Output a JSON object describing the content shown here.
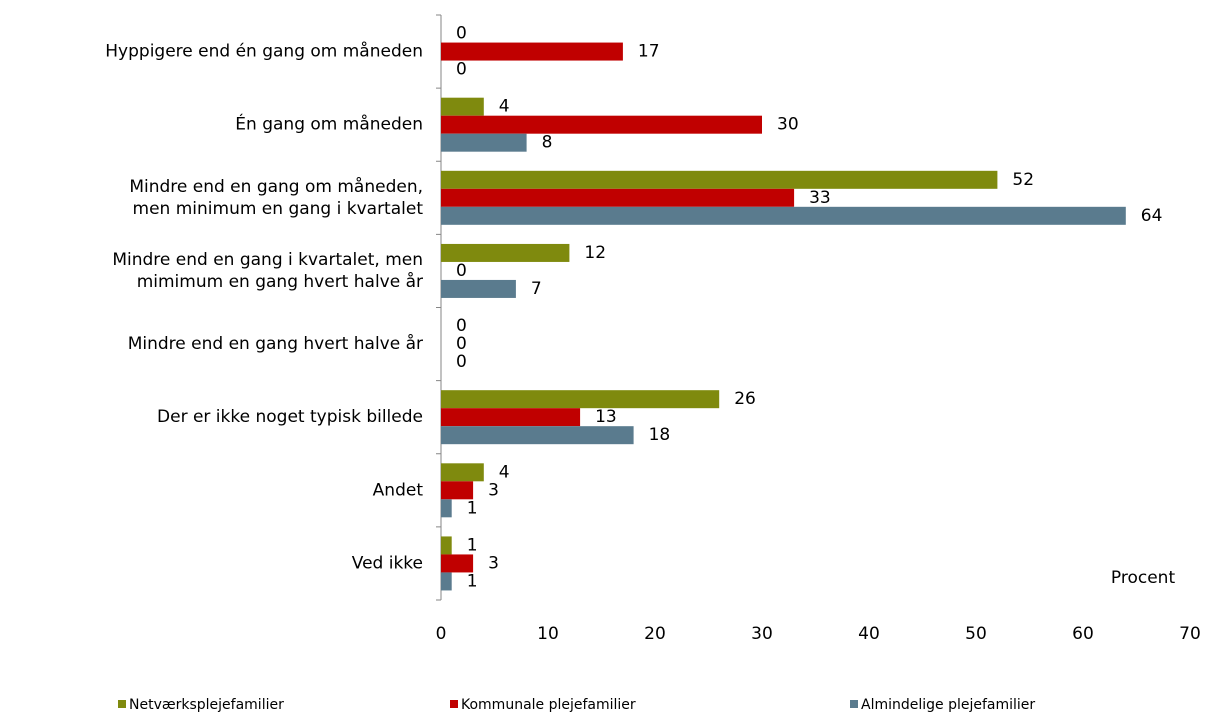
{
  "chart_data": {
    "type": "bar",
    "orientation": "horizontal",
    "categories": [
      [
        "Hyppigere end én gang om måneden"
      ],
      [
        "Én gang om måneden"
      ],
      [
        "Mindre end en gang om måneden,",
        "men minimum en gang i kvartalet"
      ],
      [
        "Mindre end en gang i kvartalet, men",
        "mimimum en gang hvert halve år"
      ],
      [
        "Mindre end en gang hvert halve år"
      ],
      [
        "Der er ikke noget typisk billede"
      ],
      [
        "Andet"
      ],
      [
        "Ved ikke"
      ]
    ],
    "series": [
      {
        "name": "Netværksplejefamilier",
        "color": "#7f8a0e",
        "values": [
          0,
          4,
          52,
          12,
          0,
          26,
          4,
          1
        ]
      },
      {
        "name": "Kommunale plejefamilier",
        "color": "#c00000",
        "values": [
          17,
          30,
          33,
          0,
          0,
          13,
          3,
          3
        ]
      },
      {
        "name": "Almindelige plejefamilier",
        "color": "#5a7b8e",
        "values": [
          0,
          8,
          64,
          7,
          0,
          18,
          1,
          1
        ]
      }
    ],
    "xlabel": "Procent",
    "xlim": [
      0,
      70
    ],
    "xticks": [
      0,
      10,
      20,
      30,
      40,
      50,
      60,
      70
    ],
    "legend": "bottom"
  }
}
